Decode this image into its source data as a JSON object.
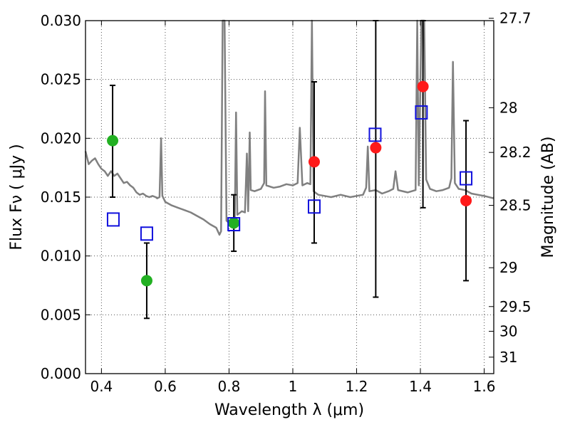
{
  "chart_data": {
    "type": "scatter",
    "xlabel": "Wavelength  λ (μm)",
    "ylabel": "Flux  Fν  ( μJy )",
    "ylabel_right": "Magnitude (AB)",
    "xlim": [
      0.35,
      1.63
    ],
    "ylim": [
      0.0,
      0.03
    ],
    "grid": true,
    "x_ticks": [
      0.4,
      0.6,
      0.8,
      1.0,
      1.2,
      1.4,
      1.6
    ],
    "x_tick_labels": [
      "0.4",
      "0.6",
      "0.8",
      "1",
      "1.2",
      "1.4",
      "1.6"
    ],
    "y_ticks": [
      0.0,
      0.005,
      0.01,
      0.015,
      0.02,
      0.025,
      0.03
    ],
    "y_tick_labels": [
      "0.000",
      "0.005",
      "0.010",
      "0.015",
      "0.020",
      "0.025",
      "0.030"
    ],
    "right_ticks": [
      {
        "label": "27.7",
        "flux": 0.0302
      },
      {
        "label": "28",
        "flux": 0.0226
      },
      {
        "label": "28.2",
        "flux": 0.0188
      },
      {
        "label": "28.5",
        "flux": 0.0143
      },
      {
        "label": "29",
        "flux": 0.009
      },
      {
        "label": "29.5",
        "flux": 0.0057
      },
      {
        "label": "30",
        "flux": 0.0036
      },
      {
        "label": "31",
        "flux": 0.0014
      }
    ],
    "colors": {
      "spectrum": "#808080",
      "green": "#22b022",
      "red": "#ff1a1a",
      "blue": "#1111dd",
      "errorbar": "#000000",
      "grid": "#555555"
    },
    "series": [
      {
        "marker": "green-circle",
        "points": [
          {
            "x": 0.435,
            "y": 0.0198,
            "yerr_low": 0.015,
            "yerr_high": 0.0245
          },
          {
            "x": 0.542,
            "y": 0.0079,
            "yerr_low": 0.0047,
            "yerr_high": 0.0111
          },
          {
            "x": 0.815,
            "y": 0.0128,
            "yerr_low": 0.0104,
            "yerr_high": 0.0152
          }
        ]
      },
      {
        "marker": "red-circle",
        "points": [
          {
            "x": 1.067,
            "y": 0.018,
            "yerr_low": 0.0111,
            "yerr_high": 0.0248
          },
          {
            "x": 1.26,
            "y": 0.0192,
            "yerr_low": 0.0065,
            "yerr_high": 0.0302
          },
          {
            "x": 1.408,
            "y": 0.0244,
            "yerr_low": 0.0141,
            "yerr_high": 0.0302
          },
          {
            "x": 1.543,
            "y": 0.0147,
            "yerr_low": 0.0079,
            "yerr_high": 0.0215
          }
        ]
      },
      {
        "marker": "blue-square",
        "points": [
          {
            "x": 0.437,
            "y": 0.0131
          },
          {
            "x": 0.542,
            "y": 0.0119
          },
          {
            "x": 0.815,
            "y": 0.0127
          },
          {
            "x": 1.067,
            "y": 0.0142
          },
          {
            "x": 1.258,
            "y": 0.0203
          },
          {
            "x": 1.403,
            "y": 0.0222
          },
          {
            "x": 1.543,
            "y": 0.0166
          }
        ]
      }
    ],
    "spectrum": [
      [
        0.35,
        0.0189
      ],
      [
        0.36,
        0.0178
      ],
      [
        0.37,
        0.0181
      ],
      [
        0.38,
        0.0183
      ],
      [
        0.39,
        0.0178
      ],
      [
        0.4,
        0.0174
      ],
      [
        0.41,
        0.0172
      ],
      [
        0.42,
        0.0168
      ],
      [
        0.43,
        0.0172
      ],
      [
        0.44,
        0.0168
      ],
      [
        0.45,
        0.017
      ],
      [
        0.46,
        0.0166
      ],
      [
        0.47,
        0.0162
      ],
      [
        0.48,
        0.0163
      ],
      [
        0.49,
        0.016
      ],
      [
        0.5,
        0.0158
      ],
      [
        0.51,
        0.0154
      ],
      [
        0.52,
        0.0152
      ],
      [
        0.53,
        0.0153
      ],
      [
        0.54,
        0.0151
      ],
      [
        0.55,
        0.015
      ],
      [
        0.56,
        0.0151
      ],
      [
        0.57,
        0.015
      ],
      [
        0.575,
        0.0149
      ],
      [
        0.582,
        0.015
      ],
      [
        0.587,
        0.02
      ],
      [
        0.591,
        0.0151
      ],
      [
        0.6,
        0.0146
      ],
      [
        0.62,
        0.0143
      ],
      [
        0.64,
        0.0141
      ],
      [
        0.66,
        0.0139
      ],
      [
        0.68,
        0.0137
      ],
      [
        0.7,
        0.0134
      ],
      [
        0.72,
        0.0131
      ],
      [
        0.74,
        0.0127
      ],
      [
        0.76,
        0.0124
      ],
      [
        0.77,
        0.0118
      ],
      [
        0.775,
        0.0121
      ],
      [
        0.78,
        0.0302
      ],
      [
        0.786,
        0.0302
      ],
      [
        0.792,
        0.013
      ],
      [
        0.8,
        0.0128
      ],
      [
        0.81,
        0.0127
      ],
      [
        0.818,
        0.013
      ],
      [
        0.822,
        0.0222
      ],
      [
        0.826,
        0.0135
      ],
      [
        0.84,
        0.0138
      ],
      [
        0.85,
        0.0137
      ],
      [
        0.856,
        0.0187
      ],
      [
        0.86,
        0.0138
      ],
      [
        0.865,
        0.0205
      ],
      [
        0.868,
        0.0156
      ],
      [
        0.88,
        0.0155
      ],
      [
        0.9,
        0.0157
      ],
      [
        0.91,
        0.0162
      ],
      [
        0.913,
        0.024
      ],
      [
        0.917,
        0.016
      ],
      [
        0.94,
        0.0158
      ],
      [
        0.96,
        0.0159
      ],
      [
        0.98,
        0.0161
      ],
      [
        1.0,
        0.016
      ],
      [
        1.015,
        0.0162
      ],
      [
        1.022,
        0.0209
      ],
      [
        1.03,
        0.016
      ],
      [
        1.045,
        0.0162
      ],
      [
        1.055,
        0.0161
      ],
      [
        1.06,
        0.0302
      ],
      [
        1.065,
        0.0155
      ],
      [
        1.08,
        0.0152
      ],
      [
        1.1,
        0.0151
      ],
      [
        1.12,
        0.015
      ],
      [
        1.15,
        0.0152
      ],
      [
        1.18,
        0.015
      ],
      [
        1.2,
        0.0151
      ],
      [
        1.22,
        0.0152
      ],
      [
        1.23,
        0.0158
      ],
      [
        1.235,
        0.0193
      ],
      [
        1.24,
        0.0155
      ],
      [
        1.26,
        0.0156
      ],
      [
        1.28,
        0.0153
      ],
      [
        1.3,
        0.0155
      ],
      [
        1.315,
        0.0157
      ],
      [
        1.322,
        0.0172
      ],
      [
        1.33,
        0.0156
      ],
      [
        1.36,
        0.0154
      ],
      [
        1.385,
        0.0156
      ],
      [
        1.39,
        0.0302
      ],
      [
        1.395,
        0.016
      ],
      [
        1.403,
        0.0302
      ],
      [
        1.412,
        0.0302
      ],
      [
        1.418,
        0.0165
      ],
      [
        1.43,
        0.0157
      ],
      [
        1.45,
        0.0155
      ],
      [
        1.47,
        0.0156
      ],
      [
        1.49,
        0.0158
      ],
      [
        1.497,
        0.0166
      ],
      [
        1.502,
        0.0265
      ],
      [
        1.508,
        0.0162
      ],
      [
        1.52,
        0.0157
      ],
      [
        1.54,
        0.0156
      ],
      [
        1.56,
        0.0153
      ],
      [
        1.58,
        0.0152
      ],
      [
        1.6,
        0.0151
      ],
      [
        1.63,
        0.0149
      ]
    ]
  }
}
